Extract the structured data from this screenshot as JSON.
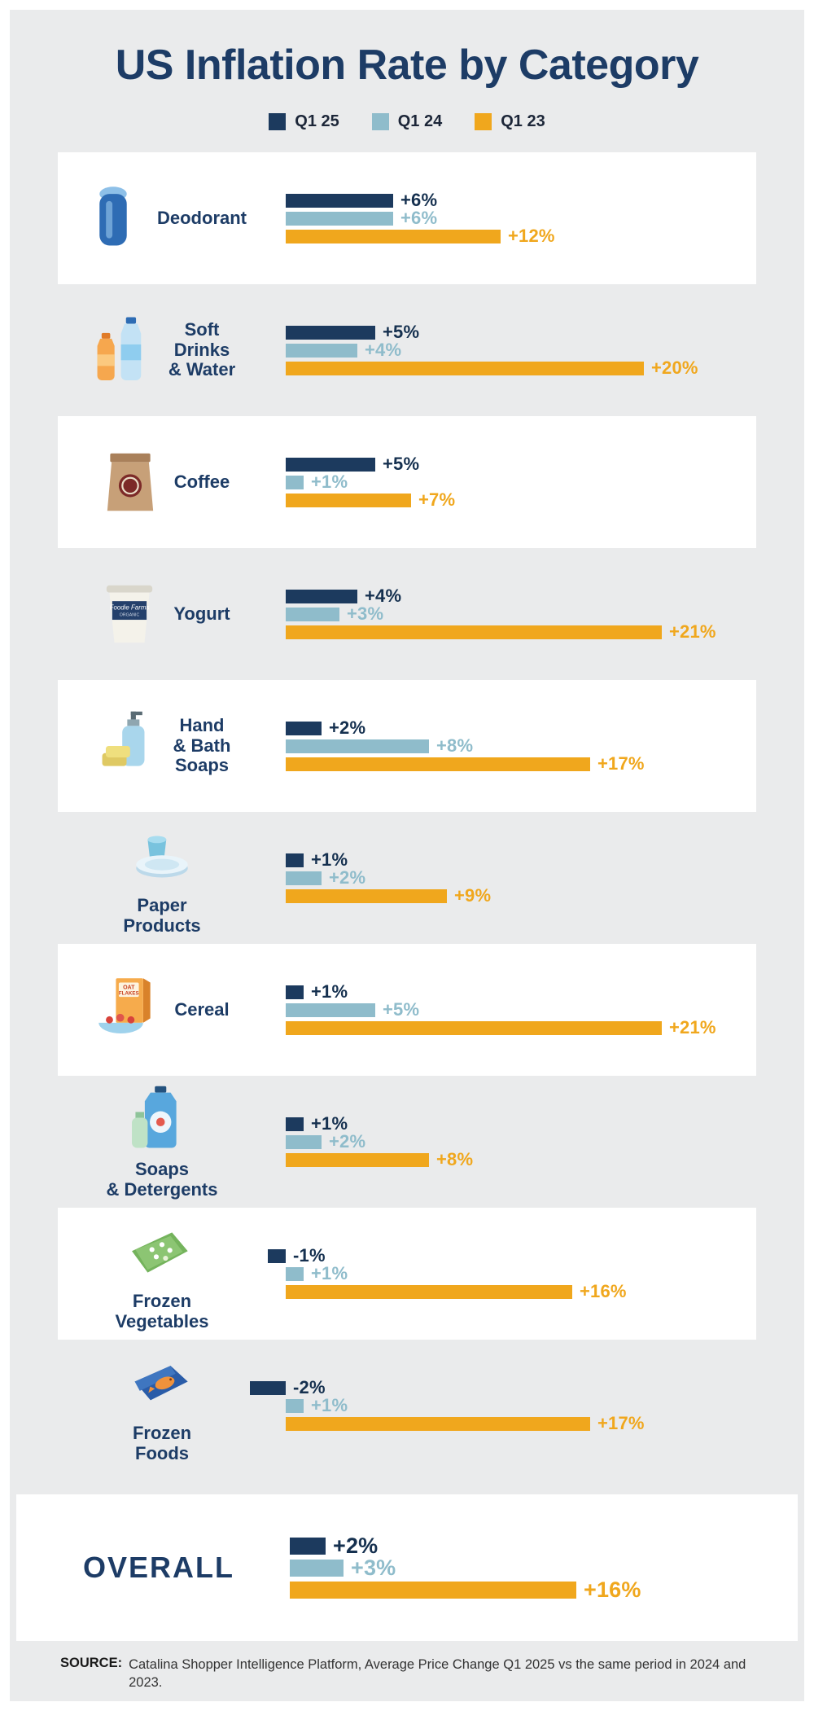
{
  "title": "US Inflation Rate by Category",
  "legend": [
    {
      "label": "Q1 25",
      "color": "#1c3a5e",
      "text_color": "#15304f"
    },
    {
      "label": "Q1 24",
      "color": "#8fbccb",
      "text_color": "#8fbccb"
    },
    {
      "label": "Q1 23",
      "color": "#f0a71d",
      "text_color": "#f0a71d"
    }
  ],
  "chart_data": {
    "type": "bar",
    "orientation": "horizontal",
    "title": "US Inflation Rate by Category",
    "unit": "%",
    "value_format": "signed_percent",
    "legend_position": "top",
    "grid": false,
    "value_range_percent": [
      -2,
      21
    ],
    "categories": [
      "Deodorant",
      "Soft Drinks & Water",
      "Coffee",
      "Yogurt",
      "Hand & Bath Soaps",
      "Paper Products",
      "Cereal",
      "Soaps & Detergents",
      "Frozen Vegetables",
      "Frozen Foods",
      "Overall"
    ],
    "series": [
      {
        "name": "Q1 25",
        "color": "#1c3a5e",
        "values": [
          6,
          5,
          5,
          4,
          2,
          1,
          1,
          1,
          -1,
          -2,
          2
        ]
      },
      {
        "name": "Q1 24",
        "color": "#8fbccb",
        "values": [
          6,
          4,
          1,
          3,
          8,
          2,
          5,
          2,
          1,
          1,
          3
        ]
      },
      {
        "name": "Q1 23",
        "color": "#f0a71d",
        "values": [
          12,
          20,
          7,
          21,
          17,
          9,
          21,
          8,
          16,
          17,
          16
        ]
      }
    ]
  },
  "rows": [
    {
      "label": "Deodorant",
      "icon": "deodorant",
      "label_position": "side",
      "band": "white",
      "overall": false,
      "values": [
        6,
        6,
        12
      ],
      "value_labels": [
        "+6%",
        "+6%",
        "+12%"
      ]
    },
    {
      "label": "Soft\nDrinks\n& Water",
      "icon": "drinks",
      "label_position": "side",
      "band": "gray",
      "overall": false,
      "values": [
        5,
        4,
        20
      ],
      "value_labels": [
        "+5%",
        "+4%",
        "+20%"
      ]
    },
    {
      "label": "Coffee",
      "icon": "coffee",
      "label_position": "side",
      "band": "white",
      "overall": false,
      "values": [
        5,
        1,
        7
      ],
      "value_labels": [
        "+5%",
        "+1%",
        "+7%"
      ]
    },
    {
      "label": "Yogurt",
      "icon": "yogurt",
      "icon_text": "Foodie Farms",
      "label_position": "side",
      "band": "gray",
      "overall": false,
      "values": [
        4,
        3,
        21
      ],
      "value_labels": [
        "+4%",
        "+3%",
        "+21%"
      ]
    },
    {
      "label": "Hand\n& Bath\nSoaps",
      "icon": "soaps",
      "label_position": "side",
      "band": "white",
      "overall": false,
      "values": [
        2,
        8,
        17
      ],
      "value_labels": [
        "+2%",
        "+8%",
        "+17%"
      ]
    },
    {
      "label": "Paper\nProducts",
      "icon": "paper",
      "label_position": "below",
      "band": "gray",
      "overall": false,
      "values": [
        1,
        2,
        9
      ],
      "value_labels": [
        "+1%",
        "+2%",
        "+9%"
      ]
    },
    {
      "label": "Cereal",
      "icon": "cereal",
      "icon_text": "OAT FLAKES",
      "label_position": "side",
      "band": "white",
      "overall": false,
      "values": [
        1,
        5,
        21
      ],
      "value_labels": [
        "+1%",
        "+5%",
        "+21%"
      ]
    },
    {
      "label": "Soaps\n& Detergents",
      "icon": "detergents",
      "label_position": "below",
      "band": "gray",
      "overall": false,
      "values": [
        1,
        2,
        8
      ],
      "value_labels": [
        "+1%",
        "+2%",
        "+8%"
      ]
    },
    {
      "label": "Frozen\nVegetables",
      "icon": "frozen_vegetables",
      "label_position": "below",
      "band": "white",
      "overall": false,
      "values": [
        -1,
        1,
        16
      ],
      "value_labels": [
        "-1%",
        "+1%",
        "+16%"
      ]
    },
    {
      "label": "Frozen\nFoods",
      "icon": "frozen_foods",
      "label_position": "below",
      "band": "gray",
      "overall": false,
      "values": [
        -2,
        1,
        17
      ],
      "value_labels": [
        "-2%",
        "+1%",
        "+17%"
      ]
    },
    {
      "label": "OVERALL",
      "icon": "none",
      "label_position": "side",
      "band": "white",
      "overall": true,
      "values": [
        2,
        3,
        16
      ],
      "value_labels": [
        "+2%",
        "+3%",
        "+16%"
      ]
    }
  ],
  "source": {
    "label": "SOURCE:",
    "text": "Catalina Shopper Intelligence Platform, Average Price Change Q1 2025 vs the same period in 2024 and 2023."
  }
}
